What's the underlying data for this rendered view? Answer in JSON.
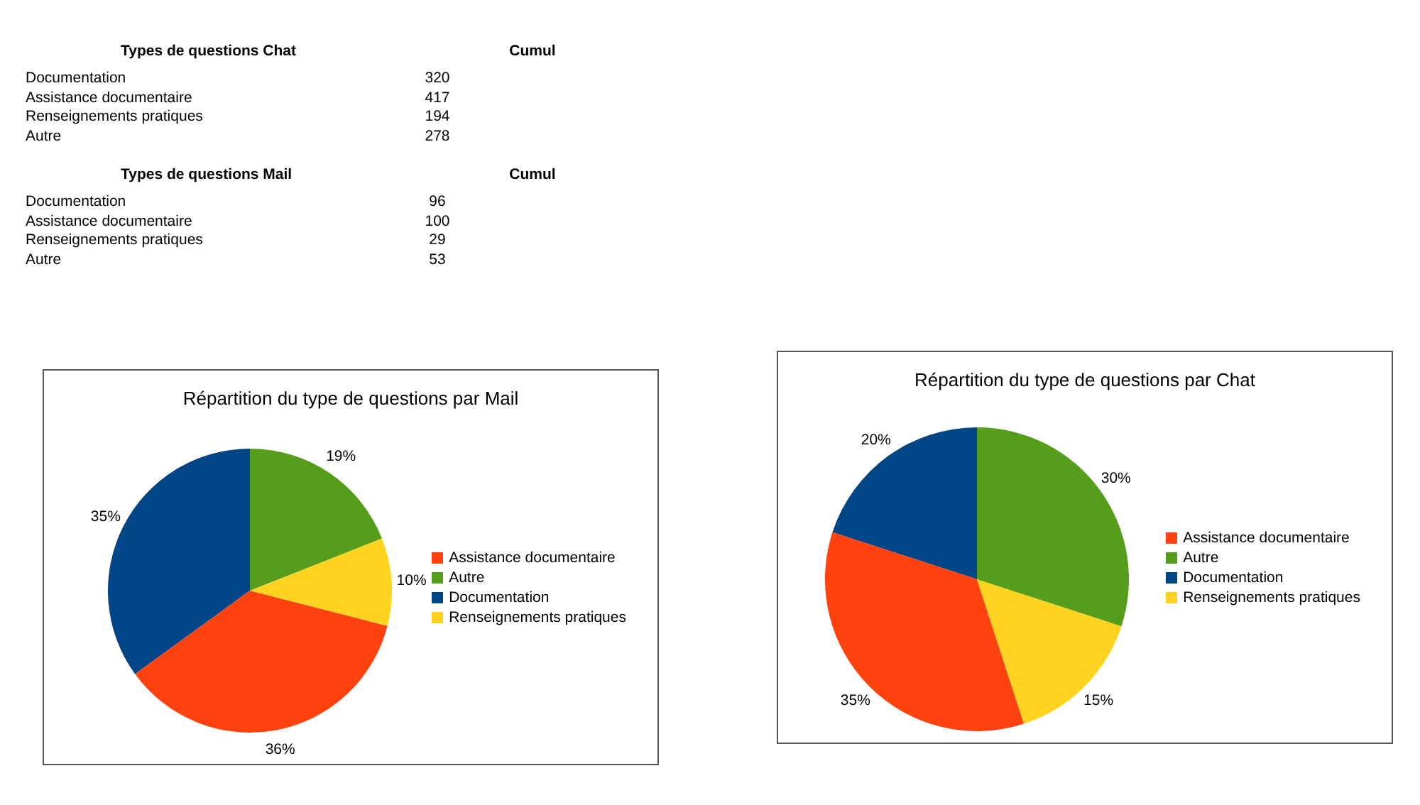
{
  "chart_data": [
    {
      "type": "other",
      "title": "Types de questions Chat",
      "annotations": [
        "Cumul"
      ],
      "categories": [
        "Documentation",
        "Assistance documentaire",
        "Renseignements pratiques",
        "Autre"
      ],
      "values": [
        320,
        417,
        194,
        278
      ],
      "data_labels": true
    },
    {
      "type": "other",
      "title": "Types de questions Mail",
      "annotations": [
        "Cumul"
      ],
      "categories": [
        "Documentation",
        "Assistance documentaire",
        "Renseignements pratiques",
        "Autre"
      ],
      "values": [
        96,
        100,
        29,
        53
      ],
      "data_labels": true
    },
    {
      "type": "pie",
      "title": "Répartition du type de questions par Mail",
      "categories": [
        "Documentation",
        "Assistance documentaire",
        "Renseignements pratiques",
        "Autre"
      ],
      "values": [
        35,
        36,
        10,
        19
      ],
      "value_labels": [
        "35%",
        "36%",
        "10%",
        "19%"
      ],
      "colors": [
        "#004586",
        "#ff420e",
        "#ffd320",
        "#579d1c"
      ],
      "legend": "right"
    },
    {
      "type": "pie",
      "title": "Répartition du type de questions par Chat",
      "categories": [
        "Documentation",
        "Assistance documentaire",
        "Renseignements pratiques",
        "Autre"
      ],
      "values": [
        20,
        35,
        15,
        30
      ],
      "value_labels": [
        "20%",
        "35%",
        "15%",
        "30%"
      ],
      "colors": [
        "#004586",
        "#ff420e",
        "#ffd320",
        "#579d1c"
      ],
      "legend": "right"
    }
  ]
}
